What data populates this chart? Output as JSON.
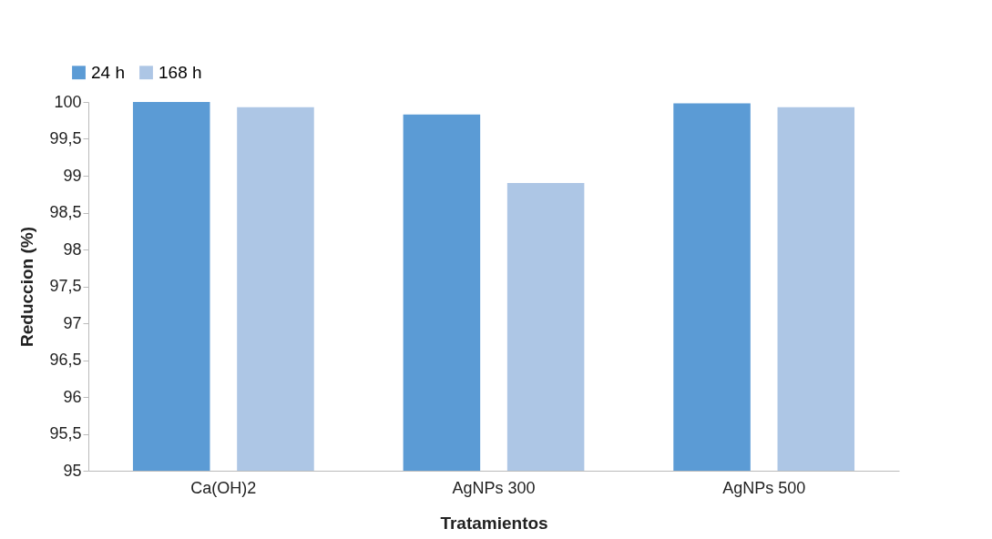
{
  "chart_data": {
    "type": "bar",
    "xlabel": "Tratamientos",
    "ylabel": "Reduccion (%)",
    "categories": [
      "Ca(OH)2",
      "AgNPs 300",
      "AgNPs 500"
    ],
    "series": [
      {
        "name": "24 h",
        "color": "#5b9bd5",
        "values": [
          100,
          99.83,
          99.98
        ]
      },
      {
        "name": "168 h",
        "color": "#adc6e5",
        "values": [
          99.93,
          98.9,
          99.93
        ]
      }
    ],
    "ylim": [
      95,
      100
    ],
    "yticks": [
      95,
      {
        "value": 95.5,
        "label": "95,5"
      },
      96,
      {
        "value": 96.5,
        "label": "96,5"
      },
      97,
      {
        "value": 97.5,
        "label": "97,5"
      },
      98,
      {
        "value": 98.5,
        "label": "98,5"
      },
      99,
      {
        "value": 99.5,
        "label": "99,5"
      },
      100
    ],
    "grid": false,
    "legend": "top left"
  }
}
